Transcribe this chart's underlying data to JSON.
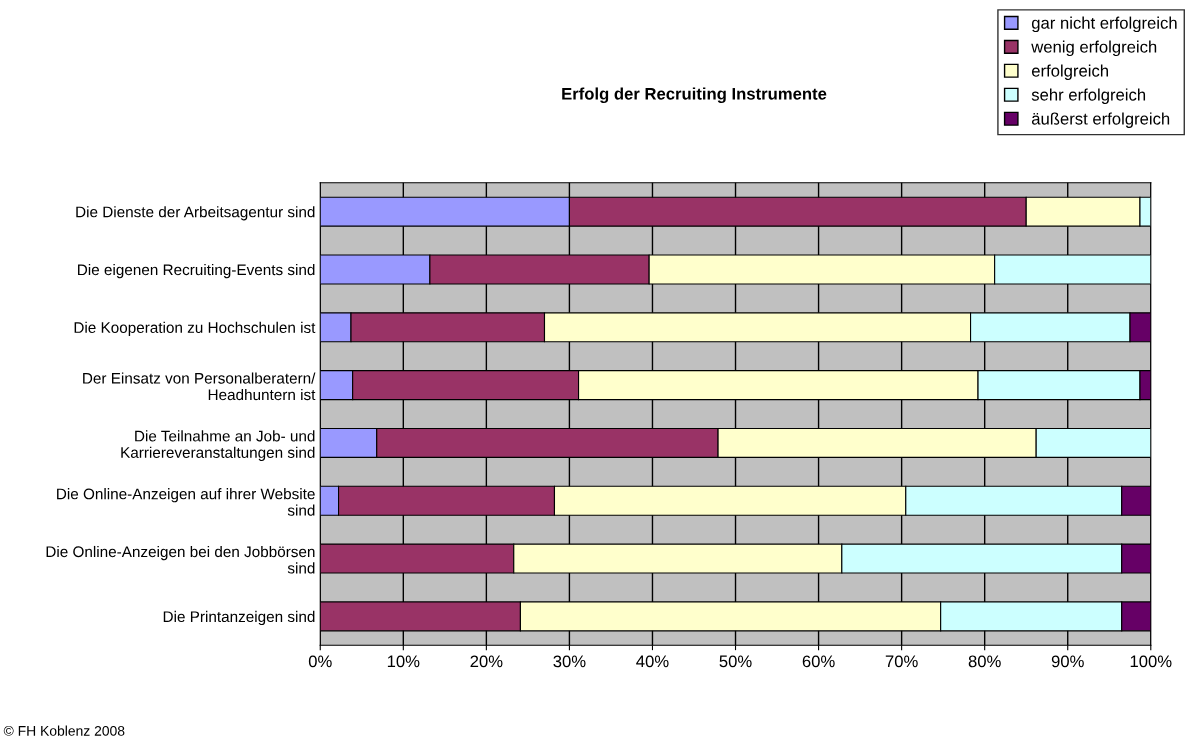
{
  "chart_data": {
    "type": "bar",
    "orientation": "horizontal",
    "stacked": true,
    "title": "Erfolg der Recruiting Instrumente",
    "categories": [
      "Die Dienste der Arbeitsagentur sind",
      "Die eigenen Recruiting-Events sind",
      "Die Kooperation zu Hochschulen ist",
      "Der Einsatz von Personalberatern/\nHeadhuntern ist",
      "Die Teilnahme an Job- und\nKarriereveranstaltungen sind",
      "Die Online-Anzeigen auf ihrer Website\nsind",
      "Die Online-Anzeigen bei den Jobbörsen\nsind",
      "Die Printanzeigen sind"
    ],
    "series": [
      {
        "name": "gar nicht erfolgreich",
        "color": "#9999ff",
        "values": [
          30.0,
          13.2,
          3.7,
          3.9,
          6.8,
          2.2,
          0,
          0
        ]
      },
      {
        "name": "wenig erfolgreich",
        "color": "#993366",
        "values": [
          55.0,
          26.4,
          23.3,
          27.2,
          41.1,
          26.0,
          23.3,
          24.1
        ]
      },
      {
        "name": "erfolgreich",
        "color": "#ffffcc",
        "values": [
          13.7,
          41.6,
          51.3,
          48.1,
          38.3,
          42.3,
          39.5,
          50.6
        ]
      },
      {
        "name": "sehr erfolgreich",
        "color": "#ccffff",
        "values": [
          1.3,
          18.8,
          19.2,
          19.5,
          13.8,
          26.0,
          33.7,
          21.8
        ]
      },
      {
        "name": "äußerst erfolgreich",
        "color": "#660066",
        "values": [
          0,
          0,
          2.5,
          1.3,
          0,
          3.5,
          3.5,
          3.5
        ]
      }
    ],
    "xlim": [
      0,
      100
    ],
    "xticks": [
      {
        "value": 0,
        "label": "0%"
      },
      {
        "value": 10,
        "label": "10%"
      },
      {
        "value": 20,
        "label": "20%"
      },
      {
        "value": 30,
        "label": "30%"
      },
      {
        "value": 40,
        "label": "40%"
      },
      {
        "value": 50,
        "label": "50%"
      },
      {
        "value": 60,
        "label": "60%"
      },
      {
        "value": 70,
        "label": "70%"
      },
      {
        "value": 80,
        "label": "80%"
      },
      {
        "value": 90,
        "label": "90%"
      },
      {
        "value": 100,
        "label": "100%"
      }
    ],
    "grid": "x",
    "legend": "top right",
    "annotations": [
      "© FH Koblenz 2008"
    ]
  }
}
